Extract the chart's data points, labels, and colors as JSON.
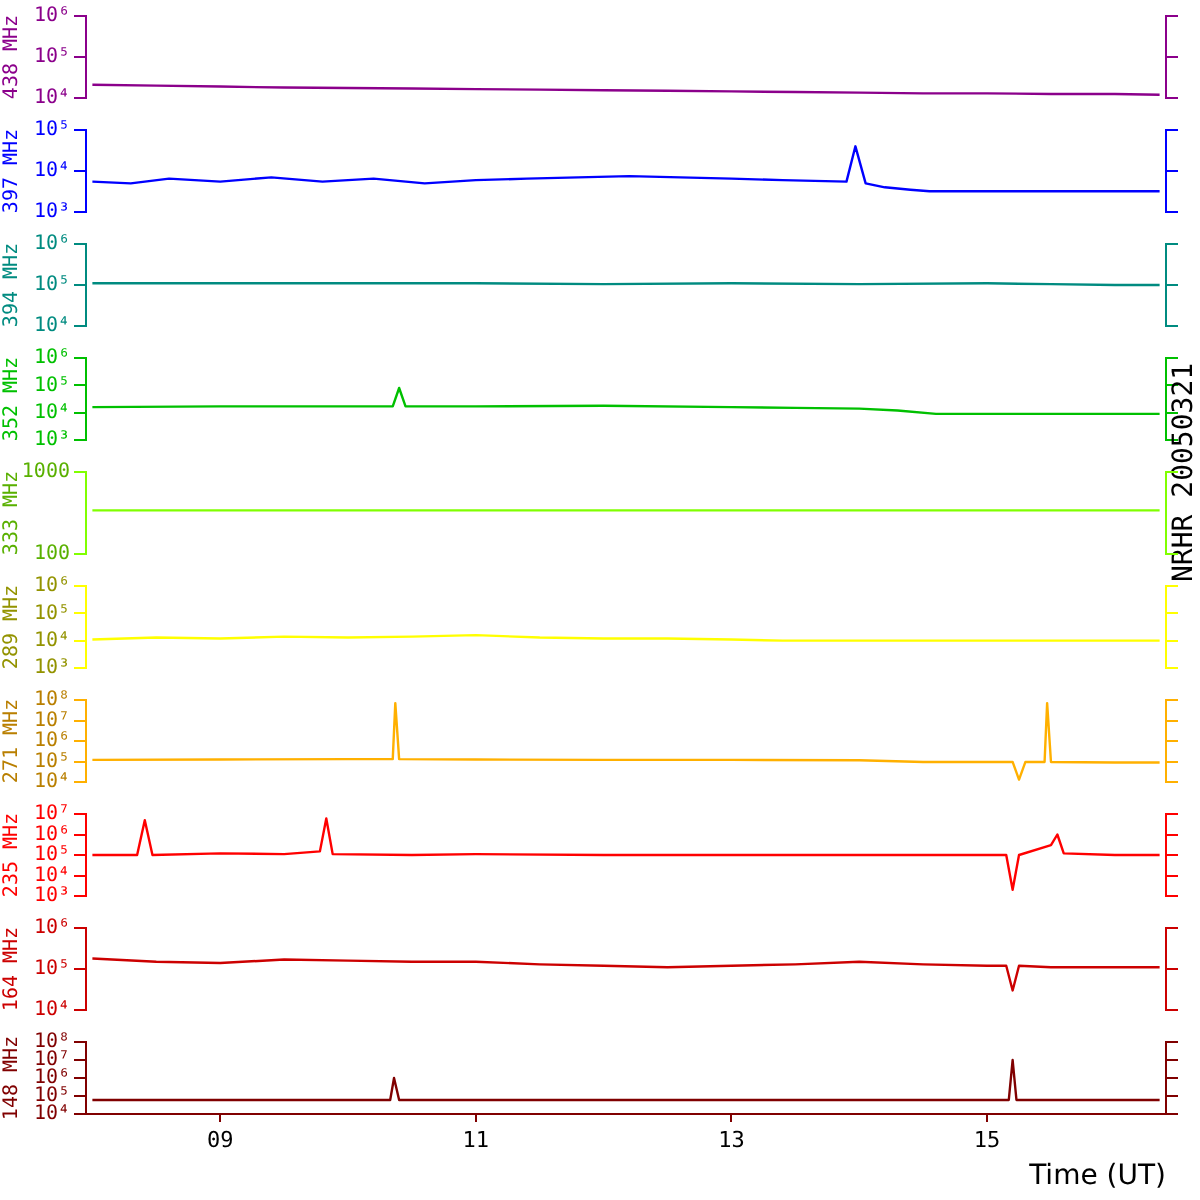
{
  "chart_data": [
    {
      "type": "line",
      "ylabel": "438 MHz",
      "log": true,
      "xlim": [
        7.95,
        16.4
      ],
      "ylim": [
        10000,
        1000000
      ],
      "yticks": [
        {
          "value": 10000,
          "label": "10⁴"
        },
        {
          "value": 100000,
          "label": "10⁵"
        },
        {
          "value": 1000000,
          "label": "10⁶"
        }
      ],
      "tick_labels": "y",
      "series": [
        {
          "color": "#8b008b",
          "x": [
            8.0,
            8.5,
            9,
            9.5,
            10,
            10.5,
            11,
            11.5,
            12,
            12.5,
            13,
            13.5,
            14,
            14.5,
            15,
            15.5,
            16,
            16.35
          ],
          "values": [
            21000,
            20000,
            19000,
            18000,
            17500,
            17000,
            16500,
            16000,
            15500,
            15000,
            14500,
            14000,
            13500,
            13000,
            13000,
            12500,
            12500,
            12000
          ]
        }
      ]
    },
    {
      "type": "line",
      "ylabel": "397 MHz",
      "log": true,
      "xlim": [
        7.95,
        16.4
      ],
      "ylim": [
        1000,
        100000
      ],
      "yticks": [
        {
          "value": 1000,
          "label": "10³"
        },
        {
          "value": 10000,
          "label": "10⁴"
        },
        {
          "value": 100000,
          "label": "10⁵"
        }
      ],
      "tick_labels": "y",
      "series": [
        {
          "color": "#0000ff",
          "x": [
            8.0,
            8.3,
            8.6,
            9,
            9.4,
            9.8,
            10.2,
            10.6,
            11,
            11.4,
            11.8,
            12.2,
            12.6,
            13,
            13.4,
            13.9,
            13.97,
            14.05,
            14.2,
            14.4,
            14.55,
            15,
            16,
            16.35
          ],
          "values": [
            5500,
            5000,
            6500,
            5500,
            7000,
            5500,
            6500,
            5000,
            6000,
            6500,
            7000,
            7500,
            7000,
            6500,
            6000,
            5500,
            40000,
            5000,
            4000,
            3500,
            3200,
            3200,
            3200,
            3200
          ]
        }
      ]
    },
    {
      "type": "line",
      "ylabel": "394 MHz",
      "log": true,
      "xlim": [
        7.95,
        16.4
      ],
      "ylim": [
        10000,
        1000000
      ],
      "yticks": [
        {
          "value": 10000,
          "label": "10⁴"
        },
        {
          "value": 100000,
          "label": "10⁵"
        },
        {
          "value": 1000000,
          "label": "10⁶"
        }
      ],
      "tick_labels": "y",
      "series": [
        {
          "color": "#008b80",
          "x": [
            8.0,
            9,
            10,
            11,
            12,
            13,
            14,
            15,
            15.5,
            16,
            16.35
          ],
          "values": [
            110000,
            110000,
            110000,
            110000,
            105000,
            110000,
            105000,
            110000,
            105000,
            100000,
            100000
          ]
        }
      ]
    },
    {
      "type": "line",
      "ylabel": "352 MHz",
      "log": true,
      "xlim": [
        7.95,
        16.4
      ],
      "ylim": [
        1000,
        1000000
      ],
      "yticks": [
        {
          "value": 1000,
          "label": "10³"
        },
        {
          "value": 10000,
          "label": "10⁴"
        },
        {
          "value": 100000,
          "label": "10⁵"
        },
        {
          "value": 1000000,
          "label": "10⁶"
        }
      ],
      "tick_labels": "y",
      "annotations": [
        "NRHR 20050321"
      ],
      "series": [
        {
          "color": "#00c000",
          "x": [
            8.0,
            9,
            10,
            10.35,
            10.4,
            10.45,
            11,
            12,
            13,
            13.5,
            14,
            14.3,
            14.6,
            15,
            16,
            16.35
          ],
          "values": [
            16000,
            17000,
            17000,
            17000,
            80000,
            17000,
            17000,
            18000,
            16000,
            15000,
            14000,
            12000,
            9000,
            9000,
            9000,
            9000
          ]
        }
      ]
    },
    {
      "type": "line",
      "ylabel": "333 MHz",
      "log": true,
      "xlim": [
        7.95,
        16.4
      ],
      "ylim": [
        100,
        1000
      ],
      "yticks": [
        100,
        1000
      ],
      "tick_labels": "y",
      "series": [
        {
          "color": "#80ff00",
          "x": [
            8.0,
            16.35
          ],
          "values": [
            340,
            340
          ]
        }
      ]
    },
    {
      "type": "line",
      "ylabel": "289 MHz",
      "log": true,
      "xlim": [
        7.95,
        16.4
      ],
      "ylim": [
        1000,
        1000000
      ],
      "yticks": [
        {
          "value": 1000,
          "label": "10³"
        },
        {
          "value": 10000,
          "label": "10⁴"
        },
        {
          "value": 100000,
          "label": "10⁵"
        },
        {
          "value": 1000000,
          "label": "10⁶"
        }
      ],
      "tick_labels": "y",
      "series": [
        {
          "color": "#ffff00",
          "x": [
            8.0,
            8.5,
            9,
            9.5,
            10,
            10.5,
            11,
            11.5,
            12,
            12.5,
            13,
            13.4,
            14,
            15,
            16,
            16.35
          ],
          "values": [
            11000,
            13000,
            12000,
            14000,
            13000,
            14000,
            16000,
            13000,
            12000,
            12000,
            11000,
            10000,
            10000,
            10000,
            10000,
            10000
          ]
        }
      ]
    },
    {
      "type": "line",
      "ylabel": "271 MHz",
      "log": true,
      "xlim": [
        7.95,
        16.4
      ],
      "ylim": [
        10000,
        100000000
      ],
      "yticks": [
        {
          "value": 10000,
          "label": "10⁴"
        },
        {
          "value": 100000,
          "label": "10⁵"
        },
        {
          "value": 1000000,
          "label": "10⁶"
        },
        {
          "value": 10000000,
          "label": "10⁷"
        },
        {
          "value": 100000000,
          "label": "10⁸"
        }
      ],
      "tick_labels": "y",
      "series": [
        {
          "color": "#ffb000",
          "x": [
            8.0,
            9,
            10,
            10.35,
            10.37,
            10.4,
            11,
            12,
            13,
            14,
            14.5,
            15,
            15.2,
            15.25,
            15.3,
            15.45,
            15.47,
            15.5,
            16,
            16.35
          ],
          "values": [
            120000,
            125000,
            130000,
            130000,
            70000000,
            130000,
            125000,
            120000,
            120000,
            115000,
            95000,
            95000,
            95000,
            13000,
            95000,
            95000,
            70000000,
            95000,
            90000,
            90000
          ]
        }
      ]
    },
    {
      "type": "line",
      "ylabel": "235 MHz",
      "log": true,
      "xlim": [
        7.95,
        16.4
      ],
      "ylim": [
        1000,
        10000000
      ],
      "yticks": [
        {
          "value": 1000,
          "label": "10³"
        },
        {
          "value": 10000,
          "label": "10⁴"
        },
        {
          "value": 100000,
          "label": "10⁵"
        },
        {
          "value": 1000000,
          "label": "10⁶"
        },
        {
          "value": 10000000,
          "label": "10⁷"
        }
      ],
      "tick_labels": "y",
      "series": [
        {
          "color": "#ff0000",
          "x": [
            8.0,
            8.35,
            8.41,
            8.47,
            9,
            9.5,
            9.78,
            9.83,
            9.88,
            10.5,
            11,
            12,
            13,
            14,
            15,
            15.15,
            15.2,
            15.25,
            15.5,
            15.55,
            15.6,
            16,
            16.35
          ],
          "values": [
            100000,
            100000,
            5000000,
            100000,
            120000,
            110000,
            150000,
            6000000,
            110000,
            100000,
            110000,
            100000,
            100000,
            100000,
            100000,
            100000,
            2000,
            100000,
            300000,
            1000000,
            120000,
            100000,
            100000
          ]
        }
      ]
    },
    {
      "type": "line",
      "ylabel": "164 MHz",
      "log": true,
      "xlim": [
        7.95,
        16.4
      ],
      "ylim": [
        10000,
        1000000
      ],
      "yticks": [
        {
          "value": 10000,
          "label": "10⁴"
        },
        {
          "value": 100000,
          "label": "10⁵"
        },
        {
          "value": 1000000,
          "label": "10⁶"
        }
      ],
      "tick_labels": "y",
      "series": [
        {
          "color": "#cc0000",
          "x": [
            8.0,
            8.5,
            9,
            9.5,
            10,
            10.5,
            11,
            11.5,
            12,
            12.5,
            13,
            13.5,
            14,
            14.5,
            15,
            15.15,
            15.2,
            15.25,
            15.5,
            16,
            16.35
          ],
          "values": [
            180000,
            150000,
            140000,
            170000,
            160000,
            150000,
            150000,
            130000,
            120000,
            110000,
            120000,
            130000,
            150000,
            130000,
            120000,
            120000,
            30000,
            120000,
            110000,
            110000,
            110000
          ]
        }
      ]
    },
    {
      "type": "line",
      "ylabel": "148 MHz",
      "xlabel": "Time (UT)",
      "log": true,
      "xlim": [
        7.95,
        16.4
      ],
      "ylim": [
        10000,
        100000000
      ],
      "yticks": [
        {
          "value": 10000,
          "label": "10⁴"
        },
        {
          "value": 100000,
          "label": "10⁵"
        },
        {
          "value": 1000000,
          "label": "10⁶"
        },
        {
          "value": 10000000,
          "label": "10⁷"
        },
        {
          "value": 100000000,
          "label": "10⁸"
        }
      ],
      "xticks": [
        {
          "value": 9,
          "label": "09"
        },
        {
          "value": 11,
          "label": "11"
        },
        {
          "value": 13,
          "label": "13"
        },
        {
          "value": 15,
          "label": "15"
        }
      ],
      "series": [
        {
          "color": "#800000",
          "x": [
            8.0,
            9,
            10,
            10.33,
            10.36,
            10.4,
            11,
            12,
            13,
            14,
            15,
            15.17,
            15.2,
            15.23,
            16,
            16.35
          ],
          "values": [
            60000,
            60000,
            60000,
            60000,
            1000000,
            60000,
            60000,
            60000,
            60000,
            60000,
            60000,
            60000,
            10000000,
            60000,
            60000,
            60000
          ]
        }
      ]
    }
  ]
}
